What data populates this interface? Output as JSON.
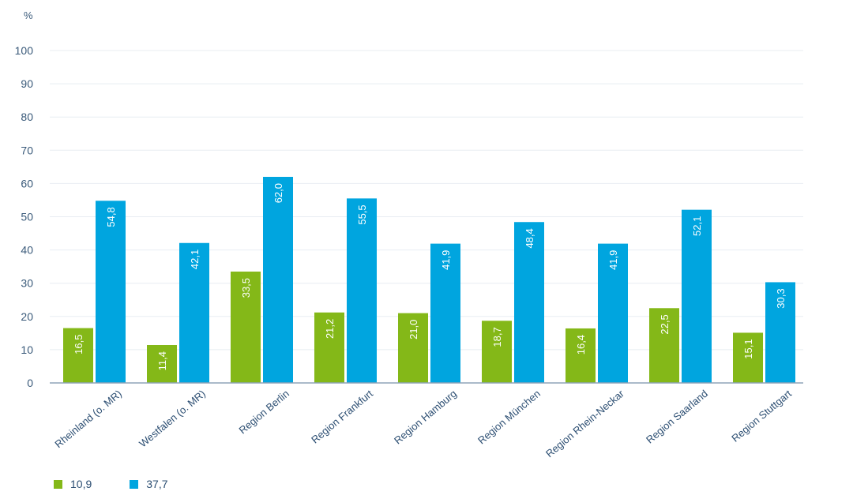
{
  "chart_data": {
    "type": "bar",
    "y_unit": "%",
    "categories": [
      "Rheinland (o. MR)",
      "Westfalen (o. MR)",
      "Region Berlin",
      "Region Frankfurt",
      "Region Hamburg",
      "Region München",
      "Region Rhein-Neckar",
      "Region Saarland",
      "Region Stuttgart"
    ],
    "series": [
      {
        "name": "10,9",
        "color": "#84b818",
        "values": [
          16.5,
          11.4,
          33.5,
          21.2,
          21.0,
          18.7,
          16.4,
          22.5,
          15.1
        ],
        "labels": [
          "16,5",
          "11,4",
          "33,5",
          "21,2",
          "21,0",
          "18,7",
          "16,4",
          "22,5",
          "15,1"
        ]
      },
      {
        "name": "37,7",
        "color": "#00a5df",
        "values": [
          54.8,
          42.1,
          62.0,
          55.5,
          41.9,
          48.4,
          41.9,
          52.1,
          30.3
        ],
        "labels": [
          "54,8",
          "42,1",
          "62,0",
          "55,5",
          "41,9",
          "48,4",
          "41,9",
          "52,1",
          "30,3"
        ]
      }
    ],
    "ylim": [
      0,
      100
    ],
    "yticks": [
      "0",
      "10",
      "20",
      "30",
      "40",
      "50",
      "60",
      "70",
      "80",
      "90",
      "100"
    ],
    "grid": true,
    "legend_position": "bottom-left"
  }
}
